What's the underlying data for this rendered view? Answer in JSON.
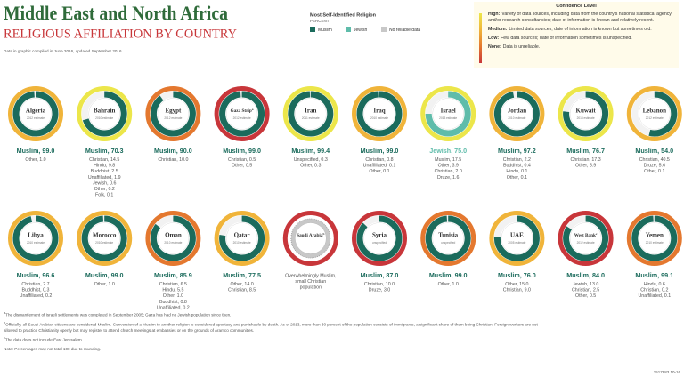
{
  "header": {
    "title": "Middle East and North Africa",
    "subtitle": "RELIGIOUS AFFILIATION BY COUNTRY",
    "note": "Data in graphic compiled in June 2016, updated September 2016."
  },
  "legend": {
    "title": "Most Self-Identified Religion",
    "unit": "PERCENT",
    "items": [
      {
        "name": "Muslim",
        "color": "#1b6b5c"
      },
      {
        "name": "Jewish",
        "color": "#5fbcaa"
      },
      {
        "name": "No reliable data",
        "color": "#c8c8c8"
      }
    ]
  },
  "confidence": {
    "title": "Confidence Level",
    "levels": [
      {
        "name": "High:",
        "color": "#ece64a",
        "text": "Variety of data sources, including data from the country's national statistical agency and/or research consultancies; date of information is known and relatively recent."
      },
      {
        "name": "Medium:",
        "color": "#f0b43a",
        "text": "Limited data sources; date of information is known but sometimes old."
      },
      {
        "name": "Low:",
        "color": "#e4782f",
        "text": "Few data sources; date of information sometimes is unspecified."
      },
      {
        "name": "None:",
        "color": "#c8363a",
        "text": "Data is unreliable."
      }
    ]
  },
  "chart_data": [
    {
      "type": "donut",
      "title": "Algeria",
      "subtitle": "2012 estimate",
      "confidence": "Medium:",
      "color": "#1b6b5c",
      "categories": [
        "Muslim",
        "Other"
      ],
      "values": [
        99,
        1
      ],
      "value_labels": [
        "Muslim, 99.0",
        "Other, 1.0"
      ]
    },
    {
      "type": "donut",
      "title": "Bahrain",
      "subtitle": "2010 estimate",
      "confidence": "High:",
      "color": "#1b6b5c",
      "categories": [
        "Muslim",
        "Christian",
        "Hindu",
        "Buddhist",
        "Unaffiliated",
        "Jewish",
        "Other",
        "Folk"
      ],
      "values": [
        70.3,
        14.5,
        9.8,
        2.5,
        1.9,
        0.6,
        0.2,
        0.1
      ],
      "value_labels": [
        "Muslim, 70.3",
        "Christian, 14.5",
        "Hindu, 9.8",
        "Buddhist, 2.5",
        "Unaffiliated, 1.9",
        "Jewish, 0.6",
        "Other, 0.2",
        "Folk, 0.1"
      ]
    },
    {
      "type": "donut",
      "title": "Egypt",
      "subtitle": "2012 estimate",
      "confidence": "Low:",
      "color": "#1b6b5c",
      "categories": [
        "Muslim",
        "Christian"
      ],
      "values": [
        90,
        10
      ],
      "value_labels": [
        "Muslim, 90.0",
        "Christian, 10.0"
      ]
    },
    {
      "type": "donut",
      "title": "Gaza Strip",
      "subtitle": "2012 estimate",
      "footnote": "a",
      "confidence": "None:",
      "color": "#1b6b5c",
      "categories": [
        "Muslim",
        "Christian",
        "Other"
      ],
      "values": [
        99,
        0.5,
        0.5
      ],
      "value_labels": [
        "Muslim, 99.0",
        "Christian, 0.5",
        "Other, 0.5"
      ]
    },
    {
      "type": "donut",
      "title": "Iran",
      "subtitle": "2011 estimate",
      "confidence": "High:",
      "color": "#1b6b5c",
      "categories": [
        "Muslim",
        "Unspecified",
        "Other"
      ],
      "values": [
        99.4,
        0.3,
        0.3
      ],
      "value_labels": [
        "Muslim, 99.4",
        "Unspecified, 0.3",
        "Other, 0.3"
      ]
    },
    {
      "type": "donut",
      "title": "Iraq",
      "subtitle": "2010 estimate",
      "confidence": "Medium:",
      "color": "#1b6b5c",
      "categories": [
        "Muslim",
        "Christian",
        "Unaffiliated",
        "Other"
      ],
      "values": [
        99,
        0.8,
        0.1,
        0.1
      ],
      "value_labels": [
        "Muslim, 99.0",
        "Christian, 0.8",
        "Unaffiliated, 0.1",
        "Other, 0.1"
      ]
    },
    {
      "type": "donut",
      "title": "Israel",
      "subtitle": "2013 estimate",
      "confidence": "High:",
      "color": "#5fbcaa",
      "categories": [
        "Jewish",
        "Muslim",
        "Other",
        "Christian",
        "Druze"
      ],
      "values": [
        75,
        17.5,
        3.9,
        2,
        1.6
      ],
      "value_labels": [
        "Jewish, 75.0",
        "Muslim, 17.5",
        "Other, 3.9",
        "Christian, 2.0",
        "Druze, 1.6"
      ]
    },
    {
      "type": "donut",
      "title": "Jordan",
      "subtitle": "2010 estimate",
      "confidence": "Medium:",
      "color": "#1b6b5c",
      "categories": [
        "Muslim",
        "Christian",
        "Buddhist",
        "Hindu",
        "Other"
      ],
      "values": [
        97.2,
        2.2,
        0.4,
        0.1,
        0.1
      ],
      "value_labels": [
        "Muslim, 97.2",
        "Christian, 2.2",
        "Buddhist, 0.4",
        "Hindu, 0.1",
        "Other, 0.1"
      ]
    },
    {
      "type": "donut",
      "title": "Kuwait",
      "subtitle": "2013 estimate",
      "confidence": "High:",
      "color": "#1b6b5c",
      "categories": [
        "Muslim",
        "Christian",
        "Other"
      ],
      "values": [
        76.7,
        17.3,
        5.9
      ],
      "value_labels": [
        "Muslim, 76.7",
        "Christian, 17.3",
        "Other, 5.9"
      ]
    },
    {
      "type": "donut",
      "title": "Lebanon",
      "subtitle": "2012 estimate",
      "confidence": "Medium:",
      "color": "#1b6b5c",
      "categories": [
        "Muslim",
        "Christian",
        "Druze",
        "Other"
      ],
      "values": [
        54,
        40.5,
        5.6,
        0.1
      ],
      "value_labels": [
        "Muslim, 54.0",
        "Christian, 40.5",
        "Druze, 5.6",
        "Other, 0.1"
      ]
    },
    {
      "type": "donut",
      "title": "Libya",
      "subtitle": "2010 estimate",
      "confidence": "Medium:",
      "color": "#1b6b5c",
      "categories": [
        "Muslim",
        "Christian",
        "Buddhist",
        "Unaffiliated"
      ],
      "values": [
        96.6,
        2.7,
        0.3,
        0.2
      ],
      "value_labels": [
        "Muslim, 96.6",
        "Christian, 2.7",
        "Buddhist, 0.3",
        "Unaffiliated, 0.2"
      ]
    },
    {
      "type": "donut",
      "title": "Morocco",
      "subtitle": "2010 estimate",
      "confidence": "Medium:",
      "color": "#1b6b5c",
      "categories": [
        "Muslim",
        "Other"
      ],
      "values": [
        99,
        1
      ],
      "value_labels": [
        "Muslim, 99.0",
        "Other, 1.0"
      ]
    },
    {
      "type": "donut",
      "title": "Oman",
      "subtitle": "2010 estimate",
      "confidence": "Low:",
      "color": "#1b6b5c",
      "categories": [
        "Muslim",
        "Christian",
        "Hindu",
        "Other",
        "Buddhist",
        "Unaffiliated"
      ],
      "values": [
        85.9,
        6.5,
        5.5,
        1,
        0.8,
        0.2
      ],
      "value_labels": [
        "Muslim, 85.9",
        "Christian, 6.5",
        "Hindu, 5.5",
        "Other, 1.0",
        "Buddhist, 0.8",
        "Unaffiliated, 0.2"
      ]
    },
    {
      "type": "donut",
      "title": "Qatar",
      "subtitle": "2010 estimate",
      "confidence": "Medium:",
      "color": "#1b6b5c",
      "categories": [
        "Muslim",
        "Other",
        "Christian"
      ],
      "values": [
        77.5,
        14,
        8.5
      ],
      "value_labels": [
        "Muslim, 77.5",
        "Other, 14.0",
        "Christian, 8.5"
      ]
    },
    {
      "type": "donut",
      "title": "Saudi Arabia",
      "footnote": "b",
      "confidence": "None:",
      "color": "#c8c8c8",
      "categories": [],
      "values": [],
      "value_labels": [],
      "annotation": [
        "Overwhelmingly Muslim,",
        "small Christian",
        "population"
      ]
    },
    {
      "type": "donut",
      "title": "Syria",
      "subtitle": "unspecified",
      "confidence": "None:",
      "color": "#1b6b5c",
      "categories": [
        "Muslim",
        "Christian",
        "Druze"
      ],
      "values": [
        87,
        10,
        3
      ],
      "value_labels": [
        "Muslim, 87.0",
        "Christian, 10.0",
        "Druze, 3.0"
      ]
    },
    {
      "type": "donut",
      "title": "Tunisia",
      "subtitle": "unspecified",
      "confidence": "Low:",
      "color": "#1b6b5c",
      "categories": [
        "Muslim",
        "Other"
      ],
      "values": [
        99,
        1
      ],
      "value_labels": [
        "Muslim, 99.0",
        "Other, 1.0"
      ]
    },
    {
      "type": "donut",
      "title": "UAE",
      "subtitle": "2005 estimate",
      "confidence": "Medium:",
      "color": "#1b6b5c",
      "categories": [
        "Muslim",
        "Other",
        "Christian"
      ],
      "values": [
        76,
        15,
        9
      ],
      "value_labels": [
        "Muslim, 76.0",
        "Other, 15.0",
        "Christian, 9.0"
      ]
    },
    {
      "type": "donut",
      "title": "West Bank",
      "subtitle": "2012 estimate",
      "footnote": "c",
      "confidence": "None:",
      "color": "#1b6b5c",
      "categories": [
        "Muslim",
        "Jewish",
        "Christian",
        "Other"
      ],
      "values": [
        84,
        13,
        2.5,
        0.5
      ],
      "value_labels": [
        "Muslim, 84.0",
        "Jewish, 13.0",
        "Christian, 2.5",
        "Other, 0.5"
      ]
    },
    {
      "type": "donut",
      "title": "Yemen",
      "subtitle": "2010 estimate",
      "confidence": "Low:",
      "color": "#1b6b5c",
      "categories": [
        "Muslim",
        "Hindu",
        "Christian",
        "Unaffiliated"
      ],
      "values": [
        99.1,
        0.6,
        0.2,
        0.1
      ],
      "value_labels": [
        "Muslim, 99.1",
        "Hindu, 0.6",
        "Christian, 0.2",
        "Unaffiliated, 0.1"
      ]
    }
  ],
  "footnotes": [
    {
      "mark": "a",
      "text": "The dismantlement of Israeli settlements was completed in September 2005; Gaza has had no Jewish population since then."
    },
    {
      "mark": "b",
      "text": "Officially, all Saudi Arabian citizens are considered Muslim. Conversion of a Muslim to another religion is considered apostasy and punishable by death. As of 2013, more than 30 percent of the population consists of immigrants, a significant share of them being Christian. Foreign workers are not allowed to practice Christianity openly but may register to attend church meetings at embassies or on the grounds of Aramco communities."
    },
    {
      "mark": "c",
      "text": "The data does not include East Jerusalem."
    }
  ],
  "footer_note": "Note: Percentages may not total 100 due to rounding.",
  "code": "1517983 10-16"
}
